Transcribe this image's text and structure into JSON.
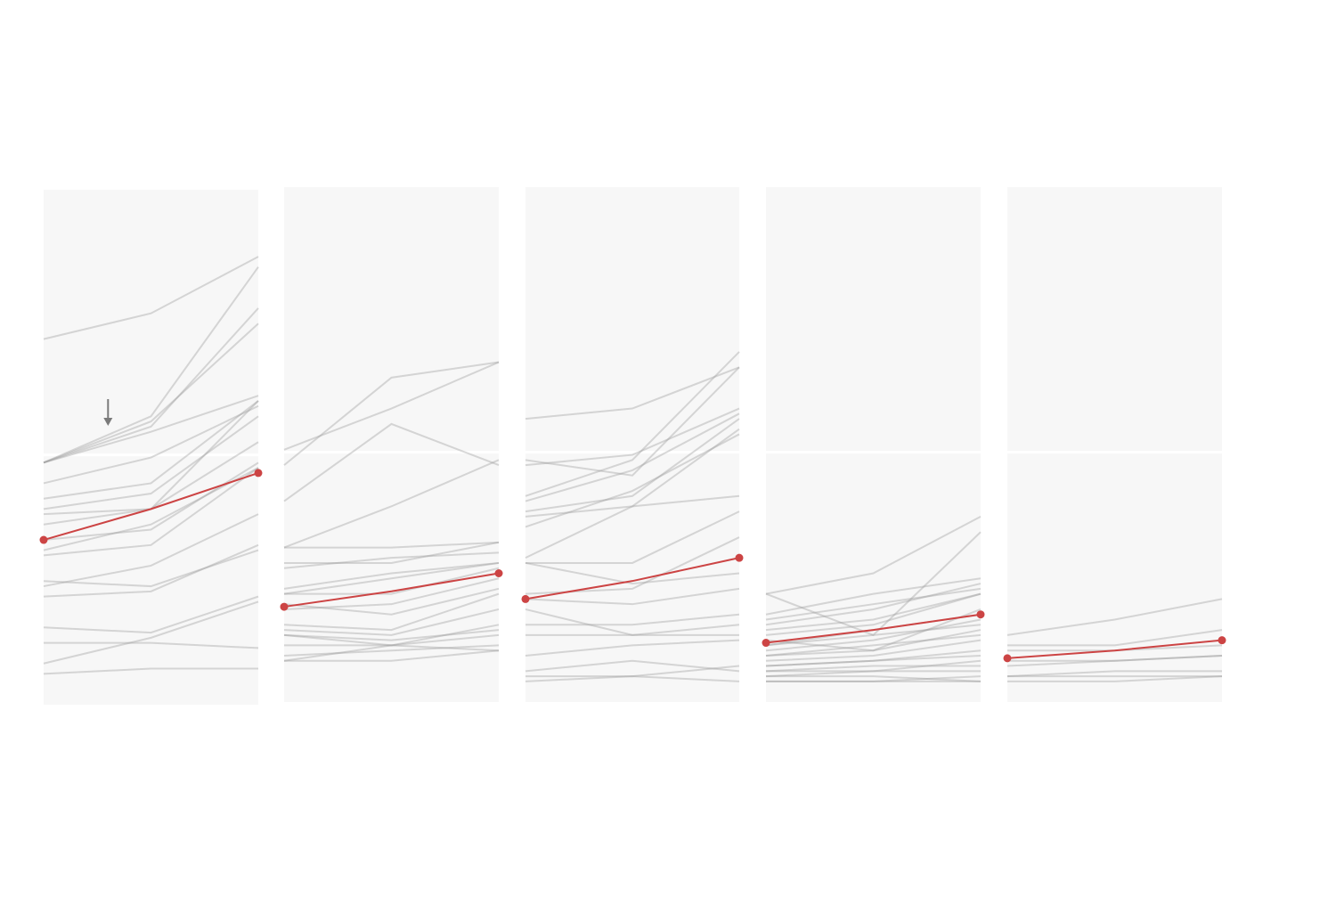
{
  "chart_data": {
    "type": "line",
    "title": "",
    "xlabel": "",
    "ylabel": "",
    "x": [
      0,
      1,
      2
    ],
    "ylim": [
      0,
      100
    ],
    "reference_value": 48.5,
    "grid": false,
    "legend": "none",
    "colors": {
      "background_line": "#9a9a9a",
      "highlight": "#cc4444",
      "panel": "#f7f7f7",
      "marker": "#7a7a7a"
    },
    "panels": [
      {
        "marker_x": 0.6,
        "series": [
          [
            71,
            76,
            87
          ],
          [
            47,
            56,
            85
          ],
          [
            47,
            54,
            77
          ],
          [
            47,
            55,
            74
          ],
          [
            47,
            53,
            60
          ],
          [
            43,
            48,
            58
          ],
          [
            40,
            43,
            59
          ],
          [
            38,
            41,
            56
          ],
          [
            37,
            38,
            59
          ],
          [
            35,
            38,
            51
          ],
          [
            32,
            34,
            47
          ],
          [
            30,
            35,
            46
          ],
          [
            29,
            31,
            46
          ],
          [
            23,
            27,
            37
          ],
          [
            24,
            23,
            30
          ],
          [
            21,
            22,
            31
          ],
          [
            15,
            14,
            21
          ],
          [
            12,
            12,
            11
          ],
          [
            8,
            13,
            20
          ],
          [
            6,
            7,
            7
          ]
        ],
        "highlight": [
          32,
          38,
          45
        ]
      },
      {
        "series": [
          [
            49,
            57,
            66
          ],
          [
            46,
            63,
            66
          ],
          [
            39,
            54,
            46
          ],
          [
            30,
            38,
            47
          ],
          [
            30,
            30,
            31
          ],
          [
            27,
            27,
            31
          ],
          [
            26,
            28,
            29
          ],
          [
            22,
            25,
            27
          ],
          [
            21,
            24,
            27
          ],
          [
            21,
            21,
            26
          ],
          [
            18,
            19,
            24
          ],
          [
            19,
            17,
            22
          ],
          [
            15,
            14,
            21
          ],
          [
            14,
            13,
            18
          ],
          [
            13,
            12,
            14
          ],
          [
            13,
            11,
            15
          ],
          [
            11,
            11,
            13
          ],
          [
            9,
            10,
            11
          ],
          [
            8,
            8,
            10
          ],
          [
            8,
            11,
            10
          ]
        ],
        "highlight": [
          18.5,
          21.5,
          25
        ]
      },
      {
        "series": [
          [
            55,
            57,
            65
          ],
          [
            47,
            44,
            65
          ],
          [
            46,
            48,
            57
          ],
          [
            40,
            47,
            68
          ],
          [
            39,
            45,
            56
          ],
          [
            37,
            40,
            55
          ],
          [
            36,
            38,
            53
          ],
          [
            34,
            41,
            52
          ],
          [
            28,
            38,
            40
          ],
          [
            27,
            27,
            37
          ],
          [
            27,
            23,
            25
          ],
          [
            21,
            22,
            32
          ],
          [
            20,
            19,
            22
          ],
          [
            18,
            13,
            15
          ],
          [
            15,
            15,
            17
          ],
          [
            13,
            13,
            13
          ],
          [
            9,
            11,
            12
          ],
          [
            6,
            8,
            6
          ],
          [
            5,
            5,
            7
          ],
          [
            4,
            5,
            4
          ]
        ],
        "highlight": [
          20,
          23.5,
          28
        ]
      },
      {
        "series": [
          [
            21,
            25,
            36
          ],
          [
            21,
            13,
            33
          ],
          [
            17,
            21,
            24
          ],
          [
            16,
            19,
            22
          ],
          [
            15,
            18,
            23
          ],
          [
            14,
            16,
            21
          ],
          [
            13,
            15,
            21
          ],
          [
            12,
            10,
            18
          ],
          [
            11,
            14,
            17
          ],
          [
            11,
            13,
            15
          ],
          [
            10,
            12,
            16
          ],
          [
            9,
            10,
            14
          ],
          [
            9,
            11,
            13
          ],
          [
            8,
            9,
            12
          ],
          [
            7,
            8,
            10
          ],
          [
            7,
            8,
            9
          ],
          [
            6,
            6,
            8
          ],
          [
            6,
            7,
            7
          ],
          [
            5,
            6,
            6
          ],
          [
            5,
            5,
            4
          ],
          [
            4,
            4,
            5
          ],
          [
            4,
            4,
            4
          ]
        ],
        "highlight": [
          11.5,
          14,
          17
        ]
      },
      {
        "series": [
          [
            13,
            16,
            20
          ],
          [
            11,
            11,
            14
          ],
          [
            10,
            10,
            11
          ],
          [
            8,
            8,
            9
          ],
          [
            7,
            8,
            9
          ],
          [
            5,
            5,
            5
          ],
          [
            5,
            6,
            6
          ],
          [
            4,
            4,
            5
          ]
        ],
        "highlight": [
          8.5,
          10,
          12
        ]
      }
    ]
  }
}
